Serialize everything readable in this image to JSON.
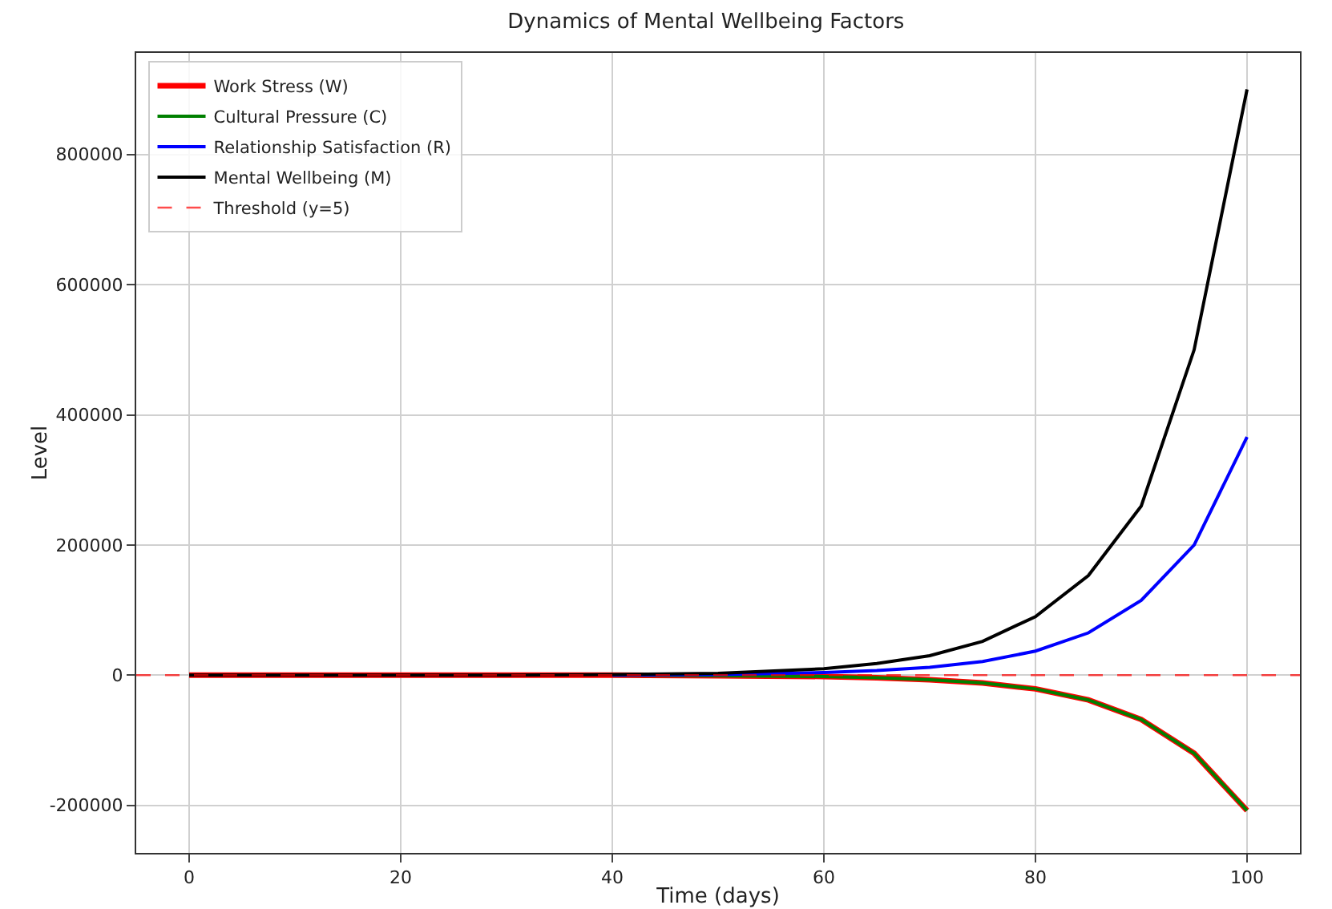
{
  "chart_data": {
    "type": "line",
    "title": "Dynamics of Mental Wellbeing Factors",
    "xlabel": "Time (days)",
    "ylabel": "Level",
    "x": [
      0,
      10,
      20,
      30,
      40,
      50,
      60,
      65,
      70,
      75,
      80,
      85,
      90,
      95,
      100
    ],
    "series": [
      {
        "name": "Work Stress (W)",
        "color": "#ff0000",
        "values": [
          0,
          0,
          0,
          0,
          0,
          -1000,
          -2000,
          -4000,
          -7000,
          -12000,
          -21000,
          -38000,
          -68000,
          -120000,
          -208000
        ]
      },
      {
        "name": "Cultural Pressure (C)",
        "color": "#008000",
        "values": [
          null,
          null,
          null,
          null,
          0,
          -1000,
          -2000,
          -4000,
          -7000,
          -12000,
          -21000,
          -38000,
          -68000,
          -120000,
          -208000
        ]
      },
      {
        "name": "Relationship Satisfaction (R)",
        "color": "#0000ff",
        "values": [
          null,
          null,
          null,
          null,
          0,
          1000,
          4000,
          7000,
          12000,
          21000,
          37000,
          65000,
          115000,
          200000,
          366000
        ]
      },
      {
        "name": "Mental Wellbeing (M)",
        "color": "#000000",
        "values": [
          0,
          0,
          0,
          0,
          1000,
          3000,
          10000,
          18000,
          30000,
          52000,
          90000,
          153000,
          260000,
          500000,
          900000
        ]
      }
    ],
    "ref_lines": [
      {
        "axis": "y",
        "value": 5,
        "label": "Threshold (y=5)",
        "color": "#ff0000",
        "line_style": "dashed"
      }
    ],
    "xlim": [
      -5,
      105
    ],
    "xticks": [
      0,
      20,
      40,
      60,
      80,
      100
    ],
    "ylim": [
      -273000,
      956000
    ],
    "yticks": [
      -200000,
      0,
      200000,
      400000,
      600000,
      800000
    ],
    "grid": true,
    "legend": "top left",
    "line_style": "solid",
    "marker": "none"
  }
}
